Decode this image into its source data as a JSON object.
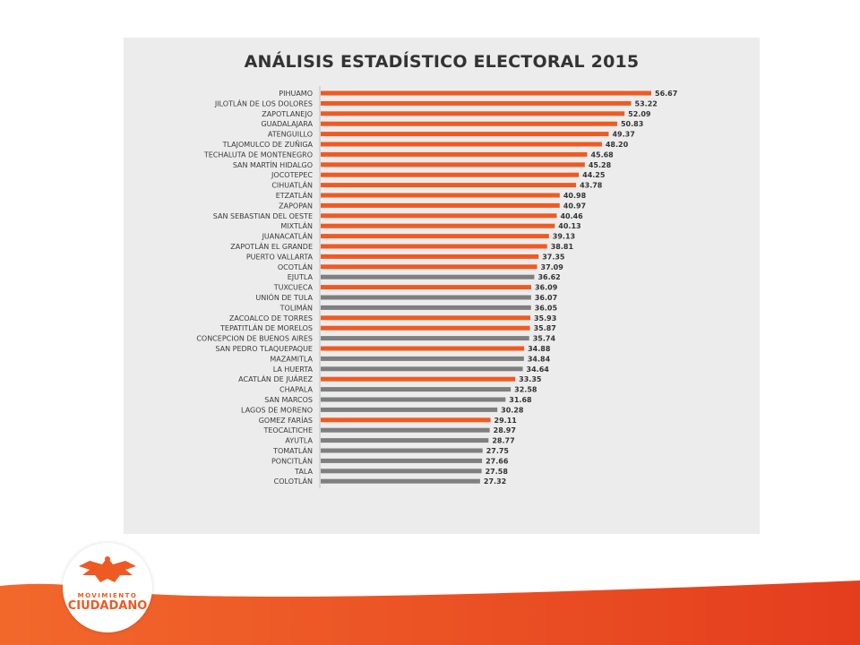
{
  "chart_data": {
    "type": "bar",
    "orientation": "horizontal",
    "title": "ANÁLISIS ESTADÍSTICO ELECTORAL 2015",
    "categories": [
      "PIHUAMO",
      "JILOTLÁN DE LOS DOLORES",
      "ZAPOTLANEJO",
      "GUADALAJARA",
      "ATENGUILLO",
      "TLAJOMULCO DE ZUÑIGA",
      "TECHALUTA DE MONTENEGRO",
      "SAN MARTÍN HIDALGO",
      "JOCOTEPEC",
      "CIHUATLÁN",
      "ETZATLÁN",
      "ZAPOPAN",
      "SAN SEBASTIAN DEL OESTE",
      "MIXTLÁN",
      "JUANACATLÁN",
      "ZAPOTLÁN EL GRANDE",
      "PUERTO VALLARTA",
      "OCOTLÁN",
      "EJUTLA",
      "TUXCUECA",
      "UNIÓN DE TULA",
      "TOLIMÁN",
      "ZACOALCO DE TORRES",
      "TEPATITLÁN DE MORELOS",
      "CONCEPCION DE BUENOS AIRES",
      "SAN PEDRO TLAQUEPAQUE",
      "MAZAMITLA",
      "LA HUERTA",
      "ACATLÁN DE JUÁREZ",
      "CHAPALA",
      "SAN MARCOS",
      "LAGOS DE MORENO",
      "GOMEZ FARÍAS",
      "TEOCALTICHE",
      "AYUTLA",
      "TOMATLÁN",
      "PONCITLÁN",
      "TALA",
      "COLOTLÁN"
    ],
    "values": [
      56.67,
      53.22,
      52.09,
      50.83,
      49.37,
      48.2,
      45.68,
      45.28,
      44.25,
      43.78,
      40.98,
      40.97,
      40.46,
      40.13,
      39.13,
      38.81,
      37.35,
      37.09,
      36.62,
      36.09,
      36.07,
      36.05,
      35.93,
      35.87,
      35.74,
      34.88,
      34.84,
      34.64,
      33.35,
      32.58,
      31.68,
      30.28,
      29.11,
      28.97,
      28.77,
      27.75,
      27.66,
      27.58,
      27.32
    ],
    "value_labels": [
      "56.67",
      "53.22",
      "52.09",
      "50.83",
      "49.37",
      "48.20",
      "45.68",
      "45.28",
      "44.25",
      "43.78",
      "40.98",
      "40.97",
      "40.46",
      "40.13",
      "39.13",
      "38.81",
      "37.35",
      "37.09",
      "36.62",
      "36.09",
      "36.07",
      "36.05",
      "35.93",
      "35.87",
      "35.74",
      "34.88",
      "34.84",
      "34.64",
      "33.35",
      "32.58",
      "31.68",
      "30.28",
      "29.11",
      "28.97",
      "28.77",
      "27.75",
      "27.66",
      "27.58",
      "27.32"
    ],
    "bar_colors": [
      "orange",
      "orange",
      "orange",
      "orange",
      "orange",
      "orange",
      "orange",
      "orange",
      "orange",
      "orange",
      "orange",
      "orange",
      "orange",
      "orange",
      "orange",
      "orange",
      "orange",
      "orange",
      "gray",
      "orange",
      "gray",
      "gray",
      "orange",
      "orange",
      "gray",
      "orange",
      "gray",
      "gray",
      "orange",
      "gray",
      "gray",
      "gray",
      "orange",
      "gray",
      "gray",
      "gray",
      "gray",
      "gray",
      "gray"
    ],
    "xlim": [
      0,
      56.67
    ],
    "grid": false,
    "legend": "none"
  },
  "colors": {
    "orange": "#f05a22",
    "gray": "#7f7f7f",
    "panel_background": "#ececec",
    "axis_line": "#bfbfbf",
    "footer_left": "#f2682b",
    "footer_right": "#e43d1e"
  },
  "logo": {
    "line1": "MOVIMIENTO",
    "line2": "CIUDADANO",
    "icon": "eagle-icon"
  }
}
